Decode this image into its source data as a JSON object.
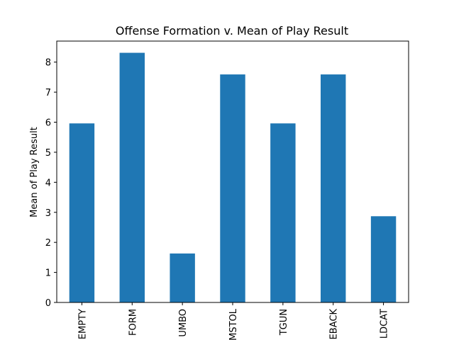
{
  "chart_data": {
    "type": "bar",
    "title": "Offense Formation v. Mean of Play Result",
    "xlabel": "",
    "ylabel": "Mean of Play Result",
    "categories": [
      "EMPTY",
      "I_FORM",
      "JUMBO",
      "PISTOL",
      "SHOTGUN",
      "SINGLEBACK",
      "WILDCAT"
    ],
    "visible_tick_text": [
      "EMPTY",
      "FORM",
      "UMBO",
      "MSTOL",
      "TGUN",
      "EBACK",
      "LDCAT"
    ],
    "values": [
      5.96,
      8.31,
      1.63,
      7.59,
      5.96,
      7.59,
      2.87
    ],
    "ylim": [
      0,
      8.7
    ],
    "yticks": [
      0,
      1,
      2,
      3,
      4,
      5,
      6,
      7,
      8
    ],
    "bar_color": "#1f77b4",
    "grid": false,
    "legend": "none"
  }
}
